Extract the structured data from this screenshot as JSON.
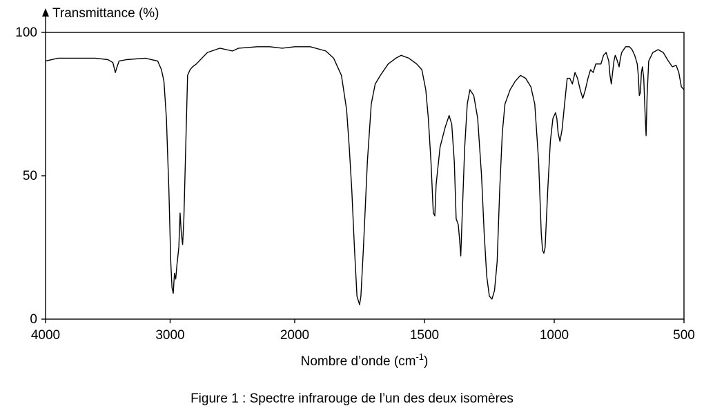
{
  "chart_data": {
    "type": "line",
    "y_axis_title": "Transmittance (%)",
    "xlabel_main": "Nombre d’onde (cm",
    "xlabel_sup": "-1",
    "xlabel_close": ")",
    "xlim": [
      4000,
      500
    ],
    "ylim": [
      0,
      100
    ],
    "x_ticks": [
      {
        "value": 4000,
        "label": "4000"
      },
      {
        "value": 3000,
        "label": "3000"
      },
      {
        "value": 2000,
        "label": "2000"
      },
      {
        "value": 1500,
        "label": "1500"
      },
      {
        "value": 1000,
        "label": "1000"
      },
      {
        "value": 500,
        "label": "500"
      }
    ],
    "y_ticks": [
      {
        "value": 0,
        "label": "0"
      },
      {
        "value": 50,
        "label": "50"
      },
      {
        "value": 100,
        "label": "100"
      }
    ],
    "x_axis_scale": "piecewise-linear, expanded below 2000 cm-1",
    "grid": false,
    "caption": "Figure 1 : Spectre infrarouge de l’un des deux isomères",
    "series": [
      {
        "color": "#000000",
        "points": [
          [
            4000,
            90
          ],
          [
            3900,
            91
          ],
          [
            3800,
            91
          ],
          [
            3700,
            91
          ],
          [
            3600,
            91
          ],
          [
            3500,
            90.5
          ],
          [
            3460,
            89.5
          ],
          [
            3440,
            86
          ],
          [
            3430,
            87.5
          ],
          [
            3410,
            90
          ],
          [
            3350,
            90.5
          ],
          [
            3200,
            91
          ],
          [
            3100,
            90
          ],
          [
            3070,
            87
          ],
          [
            3050,
            83
          ],
          [
            3030,
            70
          ],
          [
            3010,
            45
          ],
          [
            2995,
            20
          ],
          [
            2985,
            11
          ],
          [
            2975,
            9
          ],
          [
            2965,
            16
          ],
          [
            2955,
            14
          ],
          [
            2945,
            19
          ],
          [
            2930,
            25
          ],
          [
            2920,
            37
          ],
          [
            2910,
            30
          ],
          [
            2900,
            26
          ],
          [
            2890,
            35
          ],
          [
            2875,
            60
          ],
          [
            2860,
            85
          ],
          [
            2840,
            87
          ],
          [
            2820,
            88
          ],
          [
            2790,
            89
          ],
          [
            2700,
            93
          ],
          [
            2600,
            94.5
          ],
          [
            2500,
            93.5
          ],
          [
            2450,
            94.5
          ],
          [
            2300,
            95
          ],
          [
            2200,
            95
          ],
          [
            2100,
            94.5
          ],
          [
            2000,
            95
          ],
          [
            1940,
            95
          ],
          [
            1880,
            93.5
          ],
          [
            1850,
            91
          ],
          [
            1820,
            85
          ],
          [
            1800,
            73
          ],
          [
            1790,
            60
          ],
          [
            1780,
            45
          ],
          [
            1770,
            25
          ],
          [
            1760,
            8
          ],
          [
            1750,
            5
          ],
          [
            1745,
            8
          ],
          [
            1735,
            25
          ],
          [
            1720,
            55
          ],
          [
            1705,
            75
          ],
          [
            1690,
            82
          ],
          [
            1670,
            85
          ],
          [
            1640,
            89
          ],
          [
            1610,
            91
          ],
          [
            1590,
            92
          ],
          [
            1560,
            91
          ],
          [
            1530,
            89
          ],
          [
            1510,
            87
          ],
          [
            1495,
            80
          ],
          [
            1485,
            70
          ],
          [
            1475,
            55
          ],
          [
            1466,
            37
          ],
          [
            1460,
            36
          ],
          [
            1455,
            47
          ],
          [
            1440,
            60
          ],
          [
            1420,
            67
          ],
          [
            1405,
            71
          ],
          [
            1395,
            68
          ],
          [
            1385,
            55
          ],
          [
            1378,
            35
          ],
          [
            1370,
            33
          ],
          [
            1365,
            28
          ],
          [
            1360,
            22
          ],
          [
            1355,
            35
          ],
          [
            1345,
            60
          ],
          [
            1335,
            75
          ],
          [
            1325,
            80
          ],
          [
            1310,
            78
          ],
          [
            1295,
            70
          ],
          [
            1280,
            50
          ],
          [
            1270,
            30
          ],
          [
            1260,
            15
          ],
          [
            1250,
            8
          ],
          [
            1240,
            7
          ],
          [
            1230,
            10
          ],
          [
            1220,
            20
          ],
          [
            1210,
            45
          ],
          [
            1200,
            65
          ],
          [
            1190,
            75
          ],
          [
            1170,
            80
          ],
          [
            1150,
            83
          ],
          [
            1130,
            85
          ],
          [
            1110,
            84
          ],
          [
            1090,
            81
          ],
          [
            1075,
            75
          ],
          [
            1060,
            55
          ],
          [
            1050,
            30
          ],
          [
            1045,
            24
          ],
          [
            1040,
            23
          ],
          [
            1035,
            25
          ],
          [
            1025,
            45
          ],
          [
            1015,
            62
          ],
          [
            1005,
            70
          ],
          [
            995,
            72
          ],
          [
            990,
            70
          ],
          [
            985,
            65
          ],
          [
            978,
            62
          ],
          [
            970,
            66
          ],
          [
            960,
            75
          ],
          [
            950,
            84
          ],
          [
            940,
            84
          ],
          [
            930,
            82
          ],
          [
            920,
            86
          ],
          [
            910,
            84
          ],
          [
            900,
            80
          ],
          [
            890,
            77
          ],
          [
            880,
            80
          ],
          [
            870,
            84
          ],
          [
            860,
            87
          ],
          [
            850,
            86
          ],
          [
            840,
            89
          ],
          [
            830,
            89
          ],
          [
            820,
            89
          ],
          [
            810,
            92
          ],
          [
            800,
            93
          ],
          [
            790,
            90
          ],
          [
            785,
            85
          ],
          [
            780,
            82
          ],
          [
            775,
            86
          ],
          [
            770,
            90
          ],
          [
            765,
            92
          ],
          [
            760,
            91
          ],
          [
            750,
            88
          ],
          [
            745,
            91
          ],
          [
            740,
            93
          ],
          [
            725,
            95
          ],
          [
            710,
            95
          ],
          [
            700,
            94
          ],
          [
            690,
            92
          ],
          [
            680,
            89
          ],
          [
            676,
            85
          ],
          [
            672,
            78
          ],
          [
            668,
            79
          ],
          [
            664,
            86
          ],
          [
            660,
            88
          ],
          [
            655,
            84
          ],
          [
            650,
            72
          ],
          [
            646,
            64
          ],
          [
            642,
            78
          ],
          [
            636,
            90
          ],
          [
            620,
            93
          ],
          [
            600,
            94
          ],
          [
            580,
            93
          ],
          [
            560,
            90
          ],
          [
            545,
            88
          ],
          [
            530,
            88.5
          ],
          [
            520,
            86
          ],
          [
            510,
            81
          ],
          [
            500,
            80
          ]
        ]
      }
    ]
  }
}
